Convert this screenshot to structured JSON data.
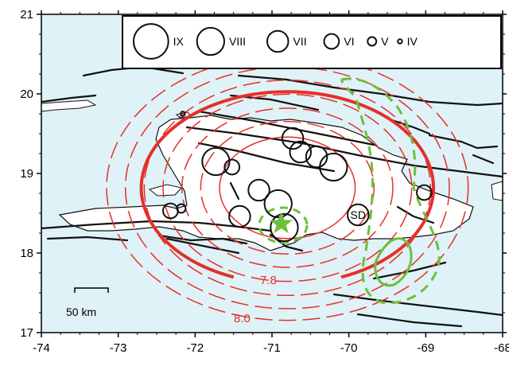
{
  "axes": {
    "x_ticks": [
      "-74",
      "-73",
      "-72",
      "-71",
      "-70",
      "-69",
      "-68"
    ],
    "y_ticks": [
      "17",
      "18",
      "19",
      "20",
      "21"
    ],
    "xlim": [
      -74,
      -68
    ],
    "ylim": [
      17,
      21
    ]
  },
  "colors": {
    "ocean": "#dff2f7",
    "land": "#ffffff",
    "fault": "#111111",
    "contour": "#e4302a",
    "rupture": "#6cbf3c"
  },
  "legend": {
    "items": [
      {
        "label": "IX",
        "radius_deg": 0.28
      },
      {
        "label": "VIII",
        "radius_deg": 0.22
      },
      {
        "label": "VII",
        "radius_deg": 0.17
      },
      {
        "label": "VI",
        "radius_deg": 0.12
      },
      {
        "label": "V",
        "radius_deg": 0.07
      },
      {
        "label": "IV",
        "radius_deg": 0.035
      }
    ]
  },
  "contour_labels": {
    "inner": "7.8",
    "outer": "8.0"
  },
  "city": {
    "label": "SD",
    "lon": -69.88,
    "lat": 18.48
  },
  "scale_bar": {
    "label": "50 km"
  },
  "epicenter": {
    "lon": -70.88,
    "lat": 18.37
  },
  "intensity_sites": [
    {
      "lon": -71.73,
      "lat": 19.15,
      "intensity": "VIII"
    },
    {
      "lon": -71.52,
      "lat": 19.08,
      "intensity": "VI"
    },
    {
      "lon": -70.73,
      "lat": 19.44,
      "intensity": "VII"
    },
    {
      "lon": -70.63,
      "lat": 19.27,
      "intensity": "VII"
    },
    {
      "lon": -70.42,
      "lat": 19.21,
      "intensity": "VII"
    },
    {
      "lon": -70.2,
      "lat": 19.08,
      "intensity": "VIII"
    },
    {
      "lon": -71.17,
      "lat": 18.79,
      "intensity": "VII"
    },
    {
      "lon": -70.92,
      "lat": 18.62,
      "intensity": "VIII"
    },
    {
      "lon": -71.42,
      "lat": 18.46,
      "intensity": "VII"
    },
    {
      "lon": -70.84,
      "lat": 18.32,
      "intensity": "VIII"
    },
    {
      "lon": -69.88,
      "lat": 18.48,
      "intensity": "VII"
    },
    {
      "lon": -69.02,
      "lat": 18.76,
      "intensity": "VI"
    },
    {
      "lon": -72.32,
      "lat": 18.53,
      "intensity": "VI"
    },
    {
      "lon": -72.18,
      "lat": 18.56,
      "intensity": "V"
    },
    {
      "lon": -72.16,
      "lat": 19.75,
      "intensity": "IV"
    }
  ],
  "contours": [
    {
      "rx": 0.9,
      "ry": 0.65,
      "style": "solid",
      "width": 1.5
    },
    {
      "rx": 1.15,
      "ry": 0.85,
      "style": "dashed",
      "width": 1.5
    },
    {
      "rx": 1.4,
      "ry": 1.02,
      "style": "dashed",
      "width": 1.5
    },
    {
      "rx": 1.65,
      "ry": 1.2,
      "style": "dashed",
      "width": 1.5
    },
    {
      "rx": 1.9,
      "ry": 1.38,
      "style": "dashed",
      "width": 1.5
    },
    {
      "rx": 2.15,
      "ry": 1.55,
      "style": "dashed",
      "width": 1.5
    },
    {
      "rx": 2.4,
      "ry": 1.7,
      "style": "dashed",
      "width": 1.5
    }
  ],
  "bold_contours": [
    {
      "rx": 1.9,
      "ry": 1.15,
      "style": "solid",
      "width": 4
    }
  ]
}
